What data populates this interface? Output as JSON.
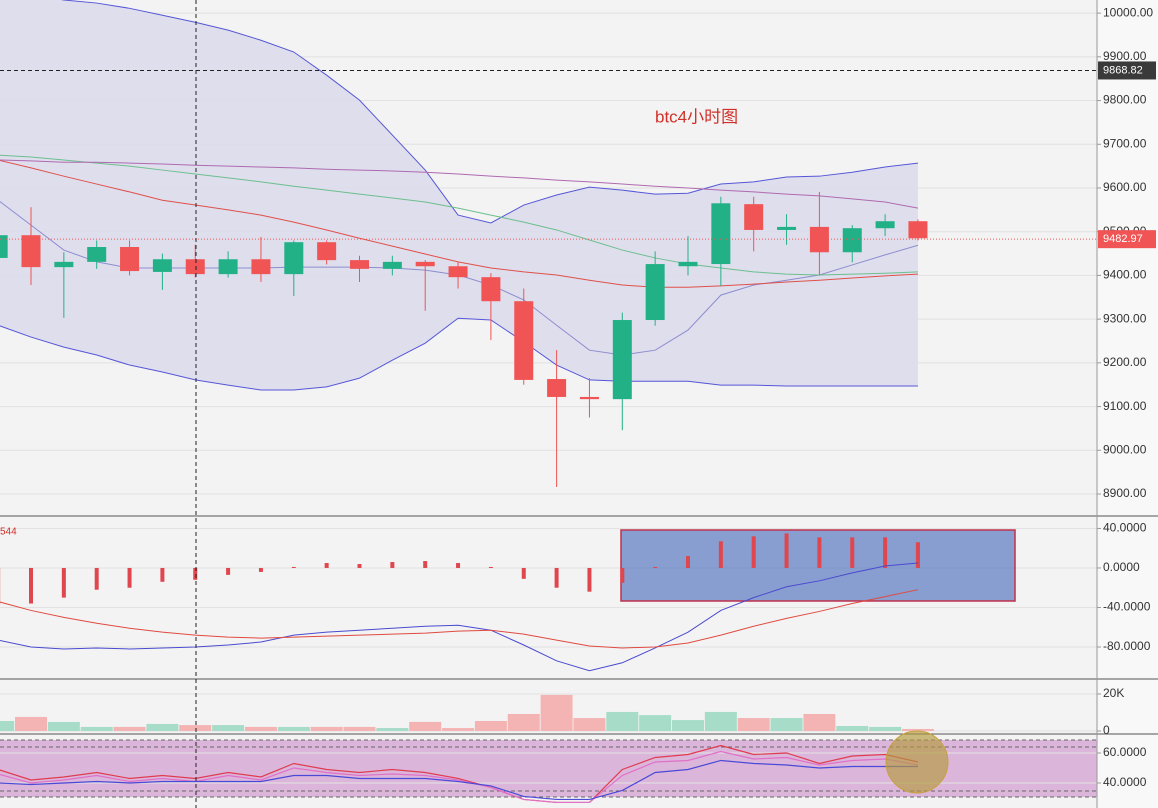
{
  "chart_data": [
    {
      "type": "candlestick",
      "title": "btc4小时图",
      "open": [
        9440,
        9492,
        9419,
        9431,
        9465,
        9408,
        9437,
        9403,
        9437,
        9403,
        9476,
        9435,
        9415,
        9431,
        9421,
        9396,
        9341,
        9163,
        9122,
        9117,
        9298,
        9421,
        9426,
        9563,
        9504,
        9511,
        9453,
        9508,
        9524
      ],
      "high": [
        9500,
        9556,
        9453,
        9480,
        9480,
        9450,
        9470,
        9455,
        9488,
        9480,
        9480,
        9445,
        9445,
        9435,
        9430,
        9405,
        9370,
        9229,
        9165,
        9315,
        9455,
        9490,
        9580,
        9580,
        9540,
        9591,
        9515,
        9540,
        9528
      ],
      "low": [
        9430,
        9378,
        9303,
        9415,
        9400,
        9367,
        9395,
        9395,
        9385,
        9353,
        9425,
        9385,
        9400,
        9319,
        9370,
        9252,
        9150,
        8916,
        9075,
        9046,
        9285,
        9400,
        9376,
        9455,
        9470,
        9400,
        9430,
        9490,
        9480
      ],
      "close": [
        9492,
        9419,
        9431,
        9465,
        9410,
        9437,
        9403,
        9437,
        9403,
        9476,
        9435,
        9415,
        9431,
        9421,
        9396,
        9341,
        9161,
        9122,
        9117,
        9298,
        9426,
        9431,
        9565,
        9504,
        9511,
        9453,
        9508,
        9524,
        9485
      ],
      "up_color": "#22b187",
      "down_color": "#f05454",
      "band_fill": "#dcdcec",
      "series": [
        {
          "color": "#5656d8",
          "values": [
            10057,
            10043,
            10030,
            10023,
            10011,
            9995,
            9979,
            9961,
            9938,
            9911,
            9858,
            9801,
            9721,
            9641,
            9538,
            9520,
            9561,
            9584,
            9602,
            9595,
            9586,
            9588,
            9609,
            9614,
            9625,
            9627,
            9636,
            9648,
            9657
          ]
        },
        {
          "color": "#5656d8",
          "values": [
            9286,
            9259,
            9236,
            9218,
            9195,
            9179,
            9161,
            9149,
            9138,
            9138,
            9145,
            9165,
            9206,
            9245,
            9302,
            9298,
            9248,
            9195,
            9161,
            9158,
            9158,
            9158,
            9149,
            9149,
            9147,
            9147,
            9147,
            9147,
            9147
          ]
        },
        {
          "color": "#8d8dcf",
          "values": [
            9572,
            9515,
            9458,
            9431,
            9417,
            9417,
            9417,
            9417,
            9417,
            9419,
            9419,
            9419,
            9417,
            9412,
            9401,
            9378,
            9344,
            9286,
            9229,
            9218,
            9229,
            9275,
            9355,
            9378,
            9389,
            9401,
            9424,
            9447,
            9469
          ]
        },
        {
          "color": "#6cbf8c",
          "values": [
            9675,
            9671,
            9664,
            9657,
            9650,
            9641,
            9632,
            9623,
            9614,
            9604,
            9595,
            9586,
            9577,
            9568,
            9554,
            9538,
            9522,
            9504,
            9481,
            9458,
            9440,
            9426,
            9417,
            9408,
            9403,
            9401,
            9403,
            9405,
            9408
          ]
        },
        {
          "color": "#e0504a",
          "values": [
            9664,
            9646,
            9627,
            9609,
            9591,
            9572,
            9561,
            9550,
            9538,
            9522,
            9504,
            9485,
            9467,
            9449,
            9431,
            9417,
            9408,
            9401,
            9389,
            9378,
            9373,
            9373,
            9376,
            9380,
            9385,
            9389,
            9394,
            9399,
            9403
          ]
        },
        {
          "color": "#b06ab0",
          "values": [
            9664,
            9662,
            9659,
            9659,
            9657,
            9655,
            9652,
            9650,
            9648,
            9646,
            9643,
            9641,
            9639,
            9636,
            9632,
            9627,
            9623,
            9618,
            9614,
            9609,
            9604,
            9600,
            9595,
            9591,
            9586,
            9582,
            9575,
            9568,
            9554
          ]
        }
      ],
      "ylim": [
        8852,
        10030
      ],
      "yticks": [
        {
          "value": 10000,
          "label": "10000.00"
        },
        {
          "value": 9900,
          "label": "9900.00"
        },
        {
          "value": 9800,
          "label": "9800.00"
        },
        {
          "value": 9700,
          "label": "9700.00"
        },
        {
          "value": 9600,
          "label": "9600.00"
        },
        {
          "value": 9500,
          "label": "9500.00"
        },
        {
          "value": 9400,
          "label": "9400.00"
        },
        {
          "value": 9300,
          "label": "9300.00"
        },
        {
          "value": 9200,
          "label": "9200.00"
        },
        {
          "value": 9100,
          "label": "9100.00"
        },
        {
          "value": 9000,
          "label": "9000.00"
        },
        {
          "value": 8900,
          "label": "8900.00"
        }
      ],
      "crosshair_price": 9868.82,
      "last_price": 9482.97,
      "grid": true
    },
    {
      "type": "macd",
      "label": "544",
      "color": "#e0464e",
      "values": [
        -37,
        -36,
        -30,
        -22,
        -20,
        -14,
        -12,
        -7,
        -4,
        1,
        5,
        4,
        6,
        7,
        5,
        1,
        -11,
        -20,
        -24,
        -15,
        1,
        12,
        27,
        32,
        35,
        31,
        31,
        31,
        26
      ],
      "series": [
        {
          "color": "#4a4ad0",
          "values": [
            -73,
            -80,
            -82,
            -81,
            -82,
            -81,
            -80,
            -78,
            -75,
            -68,
            -65,
            -63,
            -61,
            -59,
            -58,
            -63,
            -78,
            -94,
            -104,
            -96,
            -81,
            -65,
            -43,
            -30,
            -19,
            -13,
            -5,
            2,
            5
          ]
        },
        {
          "color": "#e04a40",
          "values": [
            -34,
            -43,
            -50,
            -56,
            -61,
            -65,
            -68,
            -70,
            -71,
            -70,
            -69,
            -68,
            -67,
            -66,
            -64,
            -63,
            -67,
            -73,
            -79,
            -81,
            -80,
            -76,
            -68,
            -59,
            -51,
            -44,
            -36,
            -29,
            -22
          ]
        }
      ],
      "ylim": [
        -111.4,
        51.6
      ],
      "yticks": [
        {
          "value": 40,
          "label": "40.0000"
        },
        {
          "value": 0,
          "label": "0.0000"
        },
        {
          "value": -40,
          "label": "-40.0000"
        },
        {
          "value": -80,
          "label": "-80.0000"
        }
      ],
      "grid": true
    },
    {
      "type": "volume",
      "up_color": "#a6dcc8",
      "down_color": "#f4b4b4",
      "values": [
        5400,
        7600,
        4900,
        2200,
        2200,
        3800,
        3200,
        3200,
        2200,
        2200,
        2200,
        2200,
        1600,
        4900,
        1600,
        5400,
        9200,
        19500,
        7000,
        10300,
        8600,
        5900,
        10300,
        7000,
        7000,
        9200,
        2700,
        2200,
        1100
      ],
      "ylim": [
        -1081,
        27568
      ],
      "yticks": [
        {
          "value": 20000,
          "label": "20K"
        },
        0
      ],
      "grid": true
    },
    {
      "type": "line",
      "series": [
        {
          "color": "#e03c50",
          "values": [
            49,
            42,
            44,
            47,
            43,
            45,
            43,
            47,
            44,
            53,
            49,
            47,
            49,
            47,
            43,
            37,
            29,
            27,
            27,
            49,
            57,
            59,
            65,
            59,
            60,
            53,
            58,
            59,
            54
          ]
        },
        {
          "color": "#e070c8",
          "values": [
            46,
            40,
            42,
            45,
            41,
            43,
            41,
            45,
            42,
            50,
            47,
            45,
            46,
            45,
            42,
            37,
            29,
            27,
            27,
            45,
            54,
            55,
            61,
            56,
            57,
            52,
            55,
            56,
            52
          ]
        },
        {
          "color": "#4a4ad8",
          "values": [
            40,
            39,
            40,
            41,
            40,
            41,
            41,
            41,
            41,
            45,
            45,
            43,
            43,
            43,
            41,
            38,
            31,
            29,
            29,
            35,
            47,
            49,
            55,
            53,
            52,
            50,
            51,
            51,
            51
          ]
        }
      ],
      "ylim": [
        23.3,
        72
      ],
      "yticks": [
        {
          "value": 60,
          "label": "60.0000"
        },
        {
          "value": 40,
          "label": "40.0000"
        }
      ],
      "grid": true
    }
  ]
}
